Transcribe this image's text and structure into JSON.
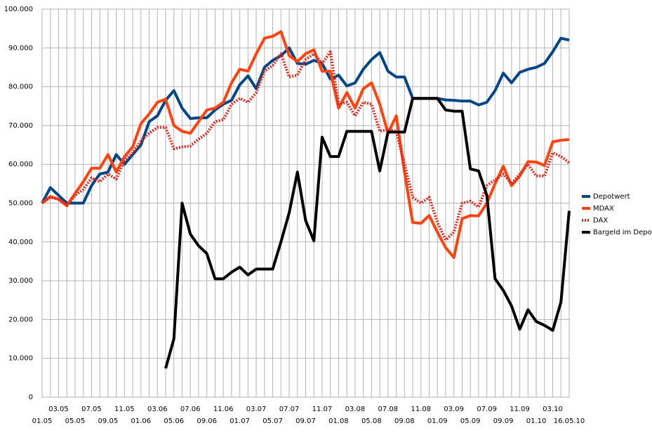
{
  "chart_data": {
    "type": "line",
    "categories": [
      "01.05",
      null,
      "03.05",
      null,
      "05.05",
      null,
      "07.05",
      null,
      "09.05",
      null,
      "11.05",
      null,
      "01.06",
      null,
      "03.06",
      null,
      "05.06",
      null,
      "07.06",
      null,
      "09.06",
      null,
      "11.06",
      null,
      "01.07",
      null,
      "03.07",
      null,
      "05.07",
      null,
      "07.07",
      null,
      "09.07",
      null,
      "11.07",
      null,
      "01.08",
      null,
      "03.08",
      null,
      "05.08",
      null,
      "07.08",
      null,
      "09.08",
      null,
      "11.08",
      null,
      "01.09",
      null,
      "03.09",
      null,
      "05.09",
      null,
      "07.09",
      null,
      "09.09",
      null,
      "11.09",
      null,
      "01.10",
      null,
      "03.10",
      null,
      "16.05.10"
    ],
    "series": [
      {
        "name": "Depotwert",
        "color": "#004586",
        "line_style": "solid",
        "values": [
          50000,
          54000,
          52000,
          50000,
          50000,
          50000,
          54500,
          57500,
          58000,
          62500,
          60000,
          62500,
          65000,
          71000,
          72500,
          76500,
          79000,
          74500,
          71800,
          72000,
          72000,
          74000,
          75500,
          76500,
          80500,
          82800,
          79500,
          85000,
          86800,
          88000,
          90000,
          86000,
          85800,
          86800,
          86000,
          82000,
          83000,
          80200,
          81000,
          84500,
          87000,
          88800,
          84000,
          82500,
          82500,
          77000,
          77000,
          77000,
          77000,
          76600,
          76500,
          76300,
          76300,
          75300,
          76000,
          79000,
          83500,
          81000,
          83700,
          84500,
          85000,
          86000,
          89000,
          92500,
          92000
        ]
      },
      {
        "name": "MDAX",
        "color": "#ff420e",
        "line_style": "solid",
        "values": [
          50000,
          51700,
          51000,
          49300,
          52500,
          55500,
          59000,
          59000,
          62500,
          58000,
          62000,
          64500,
          70500,
          73000,
          76000,
          76800,
          70000,
          68500,
          68000,
          71000,
          74000,
          74500,
          76000,
          81000,
          84500,
          84000,
          88500,
          92500,
          93000,
          94200,
          88000,
          86500,
          88500,
          89500,
          84000,
          84000,
          74500,
          78500,
          74500,
          79500,
          81000,
          75500,
          68000,
          72500,
          58000,
          45000,
          44800,
          46800,
          42500,
          38500,
          36000,
          46000,
          46800,
          46700,
          50000,
          55000,
          59500,
          54500,
          57000,
          60700,
          60600,
          59700,
          65800,
          66200,
          66400
        ]
      },
      {
        "name": "DAX",
        "color": "#e3261b",
        "line_style": "dotted",
        "values": [
          50000,
          51500,
          51000,
          49500,
          52000,
          53500,
          56500,
          55500,
          57500,
          56200,
          61000,
          63000,
          66000,
          68000,
          69500,
          69500,
          64000,
          64500,
          64700,
          66500,
          68000,
          71000,
          71500,
          75500,
          77000,
          76000,
          78500,
          84000,
          85500,
          88500,
          82500,
          83000,
          87000,
          88500,
          86000,
          89000,
          75500,
          76000,
          72500,
          76000,
          75500,
          68500,
          69000,
          68500,
          60000,
          51500,
          50000,
          51500,
          45000,
          40500,
          42500,
          50000,
          50500,
          49000,
          54500,
          56000,
          57500,
          55000,
          57500,
          60000,
          57000,
          57000,
          63000,
          62000,
          60400
        ]
      },
      {
        "name": "Bargeld im Depot",
        "color": "#000000",
        "line_style": "solid",
        "values": [
          null,
          null,
          null,
          null,
          null,
          null,
          null,
          null,
          null,
          null,
          null,
          null,
          null,
          null,
          null,
          7400,
          15000,
          50000,
          42000,
          39000,
          37000,
          30500,
          30500,
          32200,
          33500,
          31500,
          33000,
          33000,
          33000,
          40000,
          47500,
          58000,
          45500,
          40300,
          67000,
          62000,
          62000,
          68500,
          68500,
          68500,
          68500,
          58300,
          68300,
          68300,
          68300,
          77000,
          77000,
          77000,
          77000,
          74000,
          73700,
          73700,
          58800,
          58300,
          52000,
          30500,
          27500,
          23500,
          17500,
          22500,
          19500,
          18500,
          17200,
          24500,
          48000
        ]
      }
    ],
    "ylim": [
      0,
      100000
    ],
    "yticks": [
      0,
      {
        "value": 10000,
        "label": "10.000"
      },
      {
        "value": 20000,
        "label": "20.000"
      },
      {
        "value": 30000,
        "label": "30.000"
      },
      {
        "value": 40000,
        "label": "40.000"
      },
      {
        "value": 50000,
        "label": "50.000"
      },
      {
        "value": 60000,
        "label": "60.000"
      },
      {
        "value": 70000,
        "label": "70.000"
      },
      {
        "value": 80000,
        "label": "80.000"
      },
      {
        "value": 90000,
        "label": "90.000"
      },
      {
        "value": 100000,
        "label": "100.000"
      }
    ],
    "grid": true,
    "legend": "right"
  }
}
